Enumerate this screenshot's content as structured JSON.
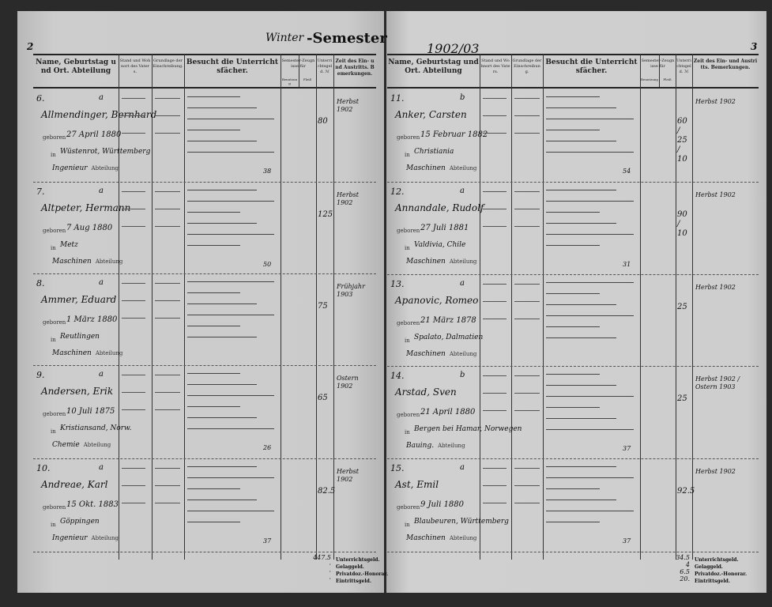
{
  "header": {
    "left_page_number": "2",
    "semester_handwritten": "Winter",
    "semester_label": "-Semester",
    "year": "1902/03",
    "right_page_number": "3"
  },
  "columns": {
    "name": "Name, Geburtstag und Ort. Abteilung",
    "stand": "Stand und Wohnort des Vaters.",
    "grundlage": "Grundlage der Einschreibung.",
    "besucht": "Besucht die Unterrichtsfächer.",
    "zeugnisse": "Semester-Zeugnisse für",
    "zeugnisse_sub1": "Benutzung",
    "zeugnisse_sub2": "Fleiß",
    "unterrichtsgeld": "Unterrichtsgeld. ℳ",
    "zeit": "Zeit des Ein- und Austritts. Bemerkungen."
  },
  "labels": {
    "geboren": "geboren",
    "in": "in",
    "abteilung": "Abteilung"
  },
  "left_entries": [
    {
      "no": "6.",
      "letter": "a",
      "name": "Allmendinger, Bernhard",
      "born": "27 April 1880",
      "place": "Wüstenrot, Württemberg",
      "dept": "Ingenieur",
      "fee": "80",
      "remark": "Herbst 1902",
      "total": "38"
    },
    {
      "no": "7.",
      "letter": "a",
      "name": "Altpeter, Hermann",
      "born": "7 Aug 1880",
      "place": "Metz",
      "dept": "Maschinen",
      "fee": "125",
      "remark": "Herbst 1902",
      "total": "50"
    },
    {
      "no": "8.",
      "letter": "a",
      "name": "Ammer, Eduard",
      "born": "1 März 1880",
      "place": "Reutlingen",
      "dept": "Maschinen",
      "fee": "75",
      "remark": "Frühjahr 1903",
      "total": ""
    },
    {
      "no": "9.",
      "letter": "a",
      "name": "Andersen, Erik",
      "born": "10 Juli 1875",
      "place": "Kristiansand, Norw.",
      "dept": "Chemie",
      "fee": "65",
      "remark": "Ostern 1902",
      "total": "26"
    },
    {
      "no": "10.",
      "letter": "a",
      "name": "Andreae, Karl",
      "born": "15 Okt. 1883",
      "place": "Göppingen",
      "dept": "Ingenieur",
      "fee": "82.5",
      "remark": "Herbst 1902",
      "total": "37"
    }
  ],
  "right_entries": [
    {
      "no": "11.",
      "letter": "b",
      "name": "Anker, Carsten",
      "born": "15 Februar 1882",
      "place": "Christiania",
      "dept": "Maschinen",
      "fee": "60 / 25 / 10",
      "remark": "Herbst 1902",
      "total": "54"
    },
    {
      "no": "12.",
      "letter": "a",
      "name": "Annandale, Rudolf",
      "born": "27 Juli 1881",
      "place": "Valdivia, Chile",
      "dept": "Maschinen",
      "fee": "90 / 10",
      "remark": "Herbst 1902",
      "total": "31"
    },
    {
      "no": "13.",
      "letter": "a",
      "name": "Apanovic, Romeo",
      "born": "21 März 1878",
      "place": "Spalato, Dalmatien",
      "dept": "Maschinen",
      "fee": "25",
      "remark": "Herbst 1902",
      "total": ""
    },
    {
      "no": "14.",
      "letter": "b",
      "name": "Arstad, Sven",
      "born": "21 April 1880",
      "place": "Bergen bei Hamar, Norwegen",
      "dept": "Bauing.",
      "fee": "25",
      "remark": "Herbst 1902 / Ostern 1903",
      "total": "37"
    },
    {
      "no": "15.",
      "letter": "a",
      "name": "Ast, Emil",
      "born": "9 Juli 1880",
      "place": "Blaubeuren, Württemberg",
      "dept": "Maschinen",
      "fee": "92.5",
      "remark": "Herbst 1902",
      "total": "37"
    }
  ],
  "footer": {
    "labels": [
      "Unterrichtsgeld.",
      "Gelaggeld.",
      "Privatdoz.-Honorar.",
      "Eintrittsgeld."
    ],
    "left_totals": [
      "447.5",
      "·",
      "·",
      "·"
    ],
    "right_totals": [
      "34.5",
      "4",
      "6.5",
      "20."
    ]
  }
}
